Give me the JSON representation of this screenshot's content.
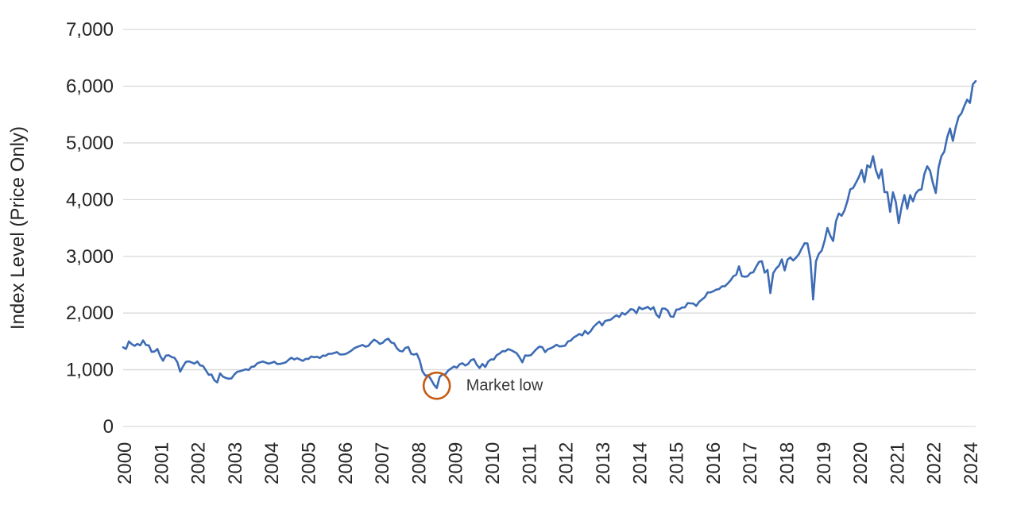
{
  "chart_data": {
    "type": "line",
    "title": "",
    "xlabel": "",
    "ylabel": "Index Level (Price Only)",
    "ylim": [
      0,
      7000
    ],
    "grid": "horizontal",
    "legend": "none",
    "y_ticks": [
      {
        "value": 0,
        "label": "0"
      },
      {
        "value": 1000,
        "label": "1,000"
      },
      {
        "value": 2000,
        "label": "2,000"
      },
      {
        "value": 3000,
        "label": "3,000"
      },
      {
        "value": 4000,
        "label": "4,000"
      },
      {
        "value": 5000,
        "label": "5,000"
      },
      {
        "value": 6000,
        "label": "6,000"
      },
      {
        "value": 7000,
        "label": "7,000"
      }
    ],
    "x_tick_labels": [
      "2000",
      "2001",
      "2002",
      "2003",
      "2004",
      "2005",
      "2006",
      "2007",
      "2008",
      "2009",
      "2010",
      "2011",
      "2012",
      "2013",
      "2014",
      "2015",
      "2016",
      "2017",
      "2018",
      "2019",
      "2020",
      "2021",
      "2022",
      "2024"
    ],
    "series": [
      {
        "name": "Index Level (Price Only)",
        "color": "#3D6CB4",
        "x_start_year": 2000,
        "points_per_year": 12,
        "values": [
          1394,
          1366,
          1499,
          1452,
          1421,
          1455,
          1431,
          1518,
          1436,
          1429,
          1315,
          1320,
          1366,
          1240,
          1160,
          1249,
          1256,
          1224,
          1211,
          1134,
          966,
          1060,
          1139,
          1148,
          1130,
          1107,
          1147,
          1077,
          1067,
          990,
          912,
          916,
          815,
          777,
          936,
          880,
          856,
          841,
          848,
          917,
          964,
          975,
          990,
          1008,
          996,
          1051,
          1058,
          1112,
          1131,
          1145,
          1126,
          1107,
          1121,
          1141,
          1102,
          1104,
          1115,
          1130,
          1174,
          1212,
          1181,
          1204,
          1181,
          1157,
          1192,
          1191,
          1234,
          1220,
          1229,
          1207,
          1249,
          1248,
          1280,
          1281,
          1295,
          1311,
          1270,
          1270,
          1277,
          1304,
          1336,
          1378,
          1401,
          1418,
          1438,
          1407,
          1421,
          1482,
          1531,
          1503,
          1455,
          1474,
          1527,
          1549,
          1481,
          1468,
          1379,
          1331,
          1323,
          1386,
          1400,
          1280,
          1267,
          1283,
          1166,
          969,
          896,
          903,
          826,
          735,
          676,
          873,
          919,
          919,
          987,
          1021,
          1057,
          1036,
          1096,
          1115,
          1074,
          1104,
          1169,
          1187,
          1089,
          1031,
          1102,
          1049,
          1141,
          1183,
          1181,
          1258,
          1286,
          1327,
          1326,
          1364,
          1345,
          1321,
          1292,
          1219,
          1131,
          1253,
          1247,
          1258,
          1312,
          1366,
          1408,
          1398,
          1310,
          1362,
          1379,
          1407,
          1441,
          1412,
          1416,
          1426,
          1498,
          1515,
          1569,
          1598,
          1631,
          1606,
          1686,
          1633,
          1682,
          1757,
          1806,
          1848,
          1783,
          1859,
          1872,
          1884,
          1924,
          1960,
          1931,
          2003,
          1972,
          2018,
          2068,
          2059,
          1995,
          2105,
          2068,
          2086,
          2107,
          2063,
          2104,
          1972,
          1920,
          2079,
          2080,
          2044,
          1940,
          1932,
          2060,
          2065,
          2097,
          2099,
          2174,
          2171,
          2168,
          2126,
          2199,
          2239,
          2279,
          2364,
          2363,
          2384,
          2412,
          2423,
          2470,
          2472,
          2519,
          2575,
          2648,
          2674,
          2824,
          2650,
          2641,
          2648,
          2705,
          2718,
          2816,
          2902,
          2914,
          2712,
          2760,
          2351,
          2704,
          2784,
          2834,
          2946,
          2752,
          2942,
          2980,
          2926,
          2977,
          3038,
          3141,
          3231,
          3226,
          2954,
          2237,
          2912,
          3044,
          3100,
          3271,
          3500,
          3363,
          3270,
          3622,
          3756,
          3714,
          3811,
          3973,
          4181,
          4204,
          4298,
          4395,
          4523,
          4308,
          4605,
          4567,
          4766,
          4516,
          4374,
          4530,
          4132,
          4132,
          3785,
          4130,
          3955,
          3586,
          3872,
          4080,
          3840,
          4077,
          3970,
          4109,
          4169,
          4180,
          4450,
          4589,
          4508,
          4288,
          4117,
          4568,
          4770,
          4846,
          5096,
          5254,
          5036,
          5278,
          5460,
          5522,
          5648,
          5762,
          5705,
          6032,
          6090
        ]
      }
    ],
    "annotation": {
      "label": "Market low",
      "value": 676,
      "circle_color": "#C55A11",
      "text_color": "#3A3A3A"
    }
  },
  "colors": {
    "background": "#FFFFFF",
    "gridline": "#D9D9D9",
    "tick_text": "#262626",
    "axis_title_text": "#262626",
    "line": "#3D6CB4"
  }
}
